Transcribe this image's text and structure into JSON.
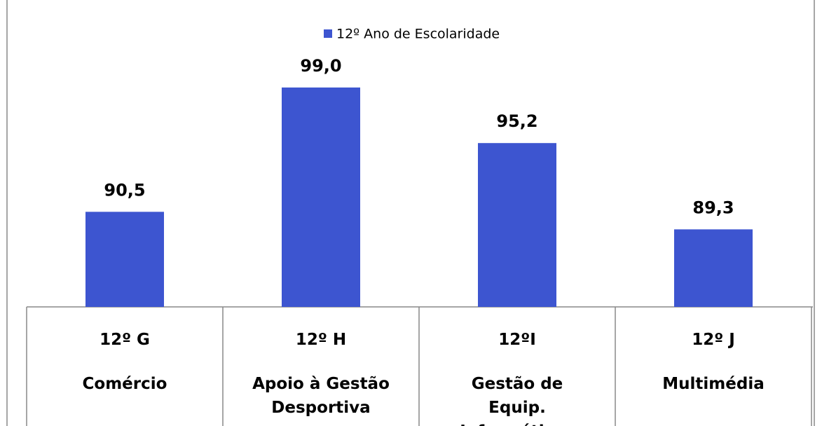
{
  "chart_data": {
    "type": "bar",
    "legend": "12º Ano de Escolaridade",
    "categories": [
      "12º G",
      "12º H",
      "12ºI",
      "12º J"
    ],
    "course_names": [
      "Comércio",
      "Apoio à Gestão Desportiva",
      "Gestão de Equip. Informáticos",
      "Multimédia"
    ],
    "values": [
      90.5,
      99.0,
      95.2,
      89.3
    ],
    "value_labels": [
      "90,5",
      "99,0",
      "95,2",
      "89,3"
    ],
    "color": "#3d55d0",
    "ylim": [
      84,
      100
    ]
  }
}
